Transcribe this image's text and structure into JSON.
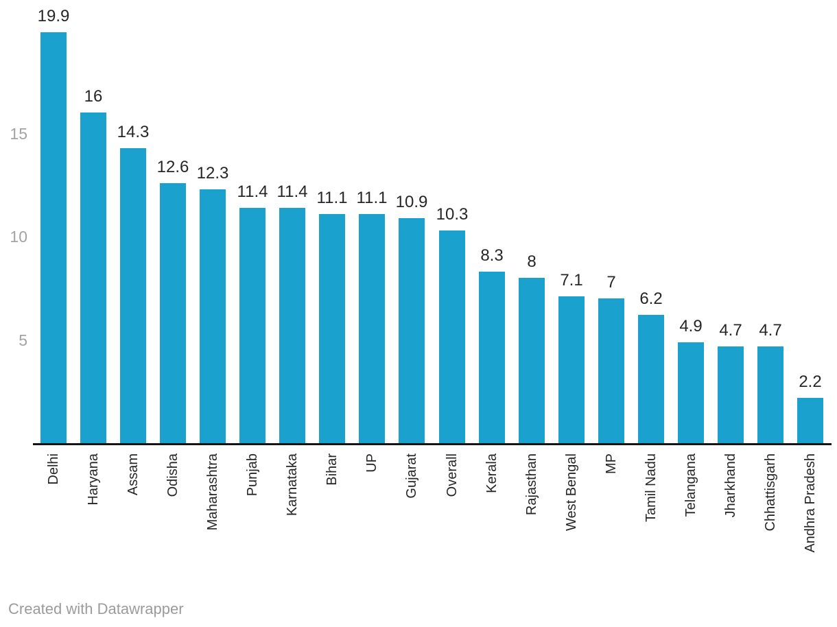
{
  "chart_data": {
    "type": "bar",
    "categories": [
      "Delhi",
      "Haryana",
      "Assam",
      "Odisha",
      "Maharashtra",
      "Punjab",
      "Karnataka",
      "Bihar",
      "UP",
      "Gujarat",
      "Overall",
      "Kerala",
      "Rajasthan",
      "West Bengal",
      "MP",
      "Tamil Nadu",
      "Telangana",
      "Jharkhand",
      "Chhattisgarh",
      "Andhra Pradesh"
    ],
    "values": [
      19.9,
      16,
      14.3,
      12.6,
      12.3,
      11.4,
      11.4,
      11.1,
      11.1,
      10.9,
      10.3,
      8.3,
      8,
      7.1,
      7,
      6.2,
      4.9,
      4.7,
      4.7,
      2.2
    ],
    "title": "",
    "xlabel": "",
    "ylabel": "",
    "ylim": [
      0,
      20
    ],
    "yticks": [
      5,
      10,
      15
    ],
    "grid": false,
    "legend_position": "none",
    "value_labels_shown": true,
    "category_label_rotation_deg": -90,
    "colors": {
      "bar": "#1BA1CE",
      "value_label": "#262626",
      "category_label": "#262626",
      "tick_label": "#A3A3A3",
      "axis_line": "#141414",
      "background": "#FFFFFF",
      "credit": "#9B9B9B"
    }
  },
  "footer": {
    "credit_text": "Created with Datawrapper"
  }
}
